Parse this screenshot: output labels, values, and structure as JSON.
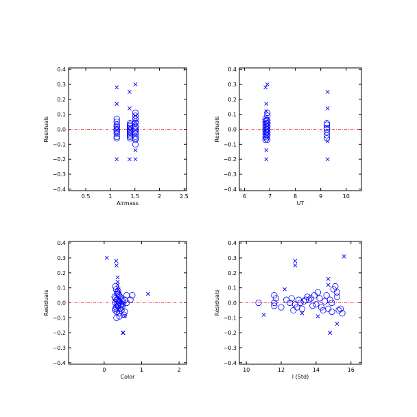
{
  "chart_data": [
    {
      "type": "scatter",
      "title": "",
      "xlabel": "Airmass",
      "ylabel": "Residuals",
      "xlim": [
        0.15,
        2.55
      ],
      "ylim": [
        -0.41,
        0.41
      ],
      "xticks": [
        0.5,
        1.0,
        1.5,
        2.0,
        2.5
      ],
      "xtick_labels": [
        "0.5",
        "1",
        "1.5",
        "2",
        "2.5"
      ],
      "yticks": [
        -0.4,
        -0.3,
        -0.2,
        -0.1,
        0.0,
        0.1,
        0.2,
        0.3,
        0.4
      ],
      "ytick_labels": [
        "−0.4",
        "−0.3",
        "−0.2",
        "−0.1",
        "0.0",
        "0.1",
        "0.2",
        "0.3",
        "0.4"
      ],
      "reference_line": 0.0,
      "grid": false,
      "series": [
        {
          "marker": "circle",
          "x": [
            1.13,
            1.13,
            1.13,
            1.13,
            1.13,
            1.13,
            1.13,
            1.13,
            1.13,
            1.13,
            1.13,
            1.4,
            1.4,
            1.4,
            1.4,
            1.4,
            1.4,
            1.4,
            1.4,
            1.4,
            1.4,
            1.4,
            1.4,
            1.4,
            1.51,
            1.51,
            1.51,
            1.51,
            1.51,
            1.51,
            1.51,
            1.51,
            1.51,
            1.51,
            1.51,
            1.51,
            1.51,
            1.51,
            1.51
          ],
          "y": [
            0.07,
            0.05,
            0.03,
            0.02,
            0.01,
            0.0,
            -0.01,
            -0.02,
            -0.03,
            -0.05,
            -0.06,
            0.04,
            0.03,
            0.02,
            0.01,
            0.0,
            -0.01,
            -0.02,
            -0.03,
            -0.04,
            -0.05,
            -0.06,
            -0.02,
            0.02,
            0.11,
            0.09,
            0.07,
            0.05,
            0.04,
            0.02,
            0.01,
            0.0,
            -0.01,
            -0.02,
            -0.03,
            -0.05,
            -0.06,
            -0.07,
            -0.1
          ]
        },
        {
          "marker": "x",
          "x": [
            1.13,
            1.13,
            1.13,
            1.39,
            1.39,
            1.51,
            1.51,
            1.51,
            1.51,
            1.51,
            1.39
          ],
          "y": [
            0.28,
            0.17,
            -0.2,
            0.25,
            0.14,
            0.3,
            0.09,
            0.05,
            -0.14,
            -0.2,
            -0.2
          ]
        }
      ]
    },
    {
      "type": "scatter",
      "title": "",
      "xlabel": "UT",
      "ylabel": "Residuals",
      "xlim": [
        5.8,
        10.6
      ],
      "ylim": [
        -0.41,
        0.41
      ],
      "xticks": [
        6,
        7,
        8,
        9,
        10
      ],
      "xtick_labels": [
        "6",
        "7",
        "8",
        "9",
        "10"
      ],
      "yticks": [
        -0.4,
        -0.3,
        -0.2,
        -0.1,
        0.0,
        0.1,
        0.2,
        0.3,
        0.4
      ],
      "ytick_labels": [
        "−0.4",
        "−0.3",
        "−0.2",
        "−0.1",
        "0.0",
        "0.1",
        "0.2",
        "0.3",
        "0.4"
      ],
      "reference_line": 0.0,
      "grid": false,
      "series": [
        {
          "marker": "circle",
          "x": [
            6.83,
            6.83,
            6.83,
            6.83,
            6.83,
            6.83,
            6.83,
            6.83,
            6.86,
            6.86,
            6.86,
            6.86,
            6.86,
            6.86,
            6.86,
            6.9,
            6.9,
            6.9,
            6.9,
            6.9,
            6.9,
            6.9,
            6.9,
            6.9,
            9.24,
            9.24,
            9.24,
            9.24,
            9.24,
            9.24,
            9.24
          ],
          "y": [
            0.07,
            0.05,
            0.03,
            0.01,
            -0.01,
            -0.03,
            -0.05,
            -0.07,
            0.06,
            0.04,
            0.02,
            0.0,
            -0.02,
            -0.04,
            -0.06,
            0.11,
            0.09,
            0.06,
            0.04,
            0.02,
            0.0,
            -0.02,
            -0.04,
            -0.07,
            0.04,
            0.03,
            0.01,
            0.0,
            -0.02,
            -0.04,
            -0.06
          ]
        },
        {
          "marker": "x",
          "x": [
            6.83,
            6.9,
            6.86,
            6.86,
            6.86,
            6.86,
            9.27,
            9.27,
            9.27,
            9.27
          ],
          "y": [
            0.28,
            0.3,
            0.17,
            0.12,
            -0.14,
            -0.2,
            0.25,
            0.14,
            -0.08,
            -0.2
          ]
        }
      ]
    },
    {
      "type": "scatter",
      "title": "",
      "xlabel": "Color",
      "ylabel": "Residuals",
      "xlim": [
        -0.95,
        2.2
      ],
      "ylim": [
        -0.41,
        0.41
      ],
      "xticks": [
        0,
        1,
        2
      ],
      "xtick_labels": [
        "0",
        "1",
        "2"
      ],
      "yticks": [
        -0.4,
        -0.3,
        -0.2,
        -0.1,
        0.0,
        0.1,
        0.2,
        0.3,
        0.4
      ],
      "ytick_labels": [
        "−0.4",
        "−0.3",
        "−0.2",
        "−0.1",
        "0.0",
        "0.1",
        "0.2",
        "0.3",
        "0.4"
      ],
      "reference_line": 0.0,
      "grid": false,
      "series": [
        {
          "marker": "circle",
          "x": [
            0.3,
            0.32,
            0.35,
            0.38,
            0.4,
            0.28,
            0.3,
            0.33,
            0.36,
            0.42,
            0.45,
            0.5,
            0.55,
            0.6,
            0.3,
            0.35,
            0.4,
            0.45,
            0.5,
            0.32,
            0.38,
            0.42,
            0.48,
            0.55,
            0.6,
            0.7,
            0.75,
            0.3,
            0.34,
            0.4,
            0.46,
            0.52,
            0.33,
            0.37,
            0.41,
            0.35,
            0.39,
            0.44,
            0.3,
            0.36
          ],
          "y": [
            0.11,
            0.09,
            0.07,
            0.06,
            0.05,
            0.04,
            0.03,
            0.02,
            0.02,
            0.04,
            0.03,
            0.01,
            0.02,
            0.05,
            0.0,
            -0.01,
            0.0,
            -0.02,
            -0.01,
            -0.03,
            -0.02,
            -0.04,
            -0.03,
            -0.06,
            0.0,
            0.02,
            0.05,
            -0.05,
            -0.06,
            -0.07,
            -0.05,
            -0.08,
            -0.1,
            0.08,
            -0.09,
            0.06,
            0.01,
            -0.01,
            -0.04,
            -0.02
          ]
        },
        {
          "marker": "x",
          "x": [
            0.07,
            0.32,
            0.33,
            0.36,
            0.36,
            0.36,
            0.38,
            0.5,
            0.51,
            0.55,
            1.17,
            0.4
          ],
          "y": [
            0.3,
            0.28,
            0.25,
            0.17,
            0.14,
            0.12,
            0.09,
            -0.2,
            -0.2,
            -0.09,
            0.06,
            0.03
          ]
        }
      ]
    },
    {
      "type": "scatter",
      "title": "",
      "xlabel": "I (Std)",
      "ylabel": "Residuals",
      "xlim": [
        9.6,
        16.6
      ],
      "ylim": [
        -0.41,
        0.41
      ],
      "xticks": [
        10,
        12,
        14,
        16
      ],
      "xtick_labels": [
        "10",
        "12",
        "14",
        "16"
      ],
      "yticks": [
        -0.4,
        -0.3,
        -0.2,
        -0.1,
        0.0,
        0.1,
        0.2,
        0.3,
        0.4
      ],
      "ytick_labels": [
        "−0.4",
        "−0.3",
        "−0.2",
        "−0.1",
        "0.0",
        "0.1",
        "0.2",
        "0.3",
        "0.4"
      ],
      "reference_line": 0.0,
      "grid": false,
      "series": [
        {
          "marker": "circle",
          "x": [
            10.7,
            11.6,
            11.7,
            11.6,
            11.6,
            12.0,
            12.3,
            12.5,
            12.6,
            12.8,
            12.9,
            13.0,
            13.1,
            13.2,
            13.3,
            13.5,
            13.6,
            13.7,
            13.8,
            13.9,
            14.1,
            14.2,
            14.3,
            14.4,
            14.5,
            14.6,
            14.7,
            14.8,
            14.9,
            15.0,
            15.1,
            15.2,
            15.3,
            15.4,
            15.5,
            14.0,
            13.4,
            12.7,
            15.2,
            14.9
          ],
          "y": [
            0.0,
            0.05,
            0.03,
            0.0,
            -0.02,
            -0.03,
            0.02,
            0.0,
            0.03,
            -0.01,
            -0.03,
            0.02,
            0.0,
            -0.04,
            0.01,
            0.04,
            0.02,
            0.03,
            -0.02,
            0.05,
            0.07,
            0.03,
            -0.03,
            -0.05,
            0.01,
            0.05,
            -0.04,
            0.02,
            0.0,
            0.09,
            0.11,
            0.04,
            -0.05,
            -0.04,
            -0.07,
            -0.01,
            0.02,
            -0.05,
            0.07,
            -0.06
          ]
        },
        {
          "marker": "x",
          "x": [
            11.0,
            12.2,
            12.8,
            12.8,
            14.7,
            14.7,
            14.8,
            15.6,
            15.2,
            14.8,
            13.2,
            14.1
          ],
          "y": [
            -0.08,
            0.09,
            0.28,
            0.25,
            0.16,
            0.12,
            -0.2,
            0.31,
            -0.14,
            -0.2,
            -0.07,
            -0.09
          ]
        }
      ]
    }
  ]
}
